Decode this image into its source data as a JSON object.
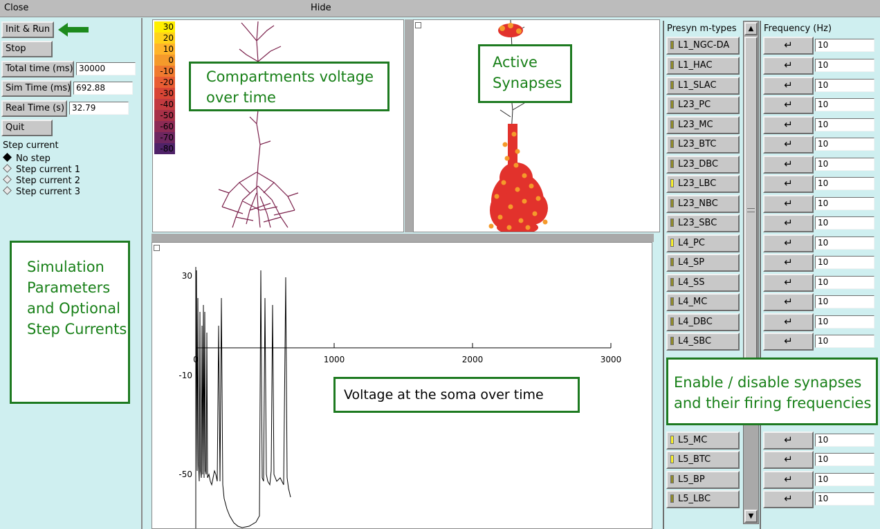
{
  "menubar": {
    "close": "Close",
    "hide": "Hide"
  },
  "controls": {
    "init_run": "Init & Run",
    "stop": "Stop",
    "total_time_label": "Total time (ms)",
    "total_time_value": "30000",
    "sim_time_label": "Sim Time (ms)",
    "sim_time_value": "692.88",
    "real_time_label": "Real Time (s)",
    "real_time_value": "32.79",
    "quit": "Quit"
  },
  "step_current": {
    "heading": "Step current",
    "options": [
      "No step",
      "Step current 1",
      "Step current 2",
      "Step current 3"
    ],
    "selected": "No step"
  },
  "colorbar": {
    "ticks": [
      "30",
      "20",
      "10",
      "0",
      "-10",
      "-20",
      "-30",
      "-40",
      "-50",
      "-60",
      "-70",
      "-80"
    ],
    "colors": [
      "#ffef00",
      "#ffd21a",
      "#ffb42a",
      "#f59a2b",
      "#f07a2f",
      "#e85d33",
      "#d84535",
      "#c23a3f",
      "#a73048",
      "#8c2a55",
      "#6d2660",
      "#4f2268"
    ]
  },
  "plot": {
    "y_ticks": [
      "30",
      "-10",
      "-50"
    ],
    "x_ticks": [
      "0",
      "1000",
      "2000",
      "3000"
    ]
  },
  "annotations": {
    "compartments": "Compartments voltage over time",
    "active_synapses": "Active Synapses",
    "sim_params": "Simulation Parameters and Optional Step Currents",
    "voltage_soma": "Voltage at the soma over time",
    "enable_disable": "Enable / disable synapses and their firing frequencies"
  },
  "synapses": {
    "header_mtypes": "Presyn m-types",
    "header_freq": "Frequency (Hz)",
    "enter_glyph": "↵",
    "items": [
      {
        "name": "L1_NGC-DA",
        "freq": "10",
        "active": false
      },
      {
        "name": "L1_HAC",
        "freq": "10",
        "active": false
      },
      {
        "name": "L1_SLAC",
        "freq": "10",
        "active": false
      },
      {
        "name": "L23_PC",
        "freq": "10",
        "active": false
      },
      {
        "name": "L23_MC",
        "freq": "10",
        "active": false
      },
      {
        "name": "L23_BTC",
        "freq": "10",
        "active": false
      },
      {
        "name": "L23_DBC",
        "freq": "10",
        "active": false
      },
      {
        "name": "L23_LBC",
        "freq": "10",
        "active": true
      },
      {
        "name": "L23_NBC",
        "freq": "10",
        "active": false
      },
      {
        "name": "L23_SBC",
        "freq": "10",
        "active": false
      },
      {
        "name": "L4_PC",
        "freq": "10",
        "active": true
      },
      {
        "name": "L4_SP",
        "freq": "10",
        "active": false
      },
      {
        "name": "L4_SS",
        "freq": "10",
        "active": false
      },
      {
        "name": "L4_MC",
        "freq": "10",
        "active": false
      },
      {
        "name": "L4_DBC",
        "freq": "10",
        "active": false
      },
      {
        "name": "L4_SBC",
        "freq": "10",
        "active": false
      },
      {
        "name": "L5_MC",
        "freq": "10",
        "active": true
      },
      {
        "name": "L5_BTC",
        "freq": "10",
        "active": true
      },
      {
        "name": "L5_BP",
        "freq": "10",
        "active": false
      },
      {
        "name": "L5_LBC",
        "freq": "10",
        "active": false
      }
    ]
  }
}
